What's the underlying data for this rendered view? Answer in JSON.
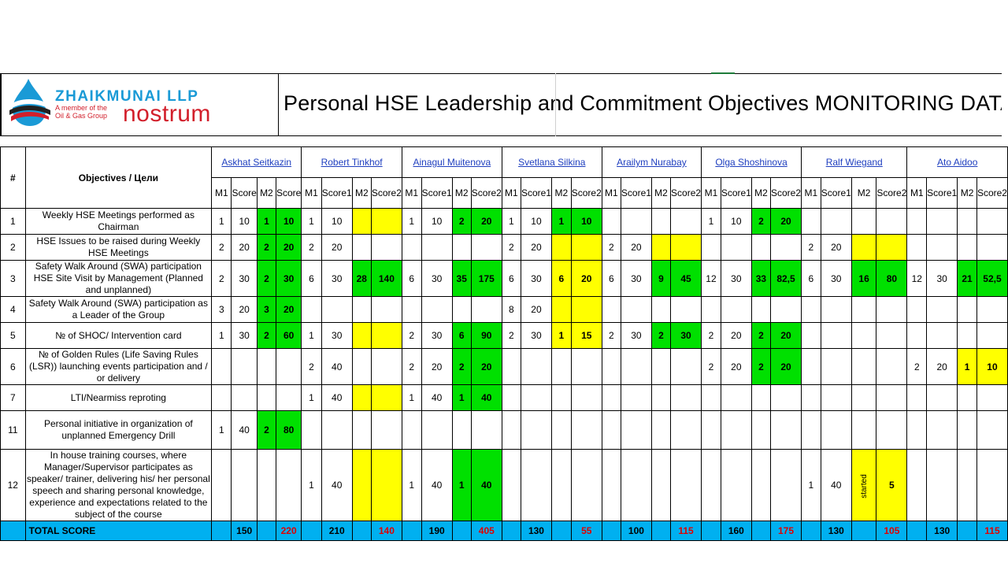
{
  "logo": {
    "company": "ZHAIKMUNAI LLP",
    "tagline_1": "A member of the",
    "tagline_2": "Oil & Gas Group",
    "brand": "nostrum"
  },
  "title": "Personal HSE Leadership and Commitment Objectives  MONITORING DATA",
  "header": {
    "hash": "#",
    "objectives": "Objectives / Цели"
  },
  "persons": [
    {
      "name": "Askhat Seitkazin",
      "cols": [
        "M1",
        "Score",
        "M2",
        "Score"
      ],
      "total1": "150",
      "total2": "220"
    },
    {
      "name": "Robert Tinkhof",
      "cols": [
        "M1",
        "Score1",
        "M2",
        "Score2"
      ],
      "total1": "210",
      "total2": "140"
    },
    {
      "name": "Ainagul Muitenova",
      "cols": [
        "M1",
        "Score1",
        "M2",
        "Score2"
      ],
      "total1": "190",
      "total2": "405"
    },
    {
      "name": "Svetlana Silkina",
      "cols": [
        "M1",
        "Score1",
        "M2",
        "Score2"
      ],
      "total1": "130",
      "total2": "55"
    },
    {
      "name": "Arailym Nurabay",
      "cols": [
        "M1",
        "Score1",
        "M2",
        "Score2"
      ],
      "total1": "100",
      "total2": "115"
    },
    {
      "name": "Olga Shoshinova",
      "cols": [
        "M1",
        "Score1",
        "M2",
        "Score2"
      ],
      "total1": "160",
      "total2": "175"
    },
    {
      "name": "Ralf Wiegand",
      "cols": [
        "M1",
        "Score1",
        "M2",
        "Score2"
      ],
      "total1": "130",
      "total2": "105"
    },
    {
      "name": "Ato Aidoo",
      "cols": [
        "M1",
        "Score1",
        "M2",
        "Score2"
      ],
      "total1": "130",
      "total2": "115"
    }
  ],
  "rows": [
    {
      "num": "1",
      "obj": "Weekly HSE Meetings performed as Chairman",
      "h": 33,
      "cells": [
        [
          "1",
          "w"
        ],
        [
          "10",
          "w"
        ],
        [
          "1",
          "g"
        ],
        [
          "10",
          "g"
        ],
        [
          "1",
          "w"
        ],
        [
          "10",
          "w"
        ],
        [
          "",
          "y"
        ],
        [
          "",
          "y"
        ],
        [
          "1",
          "w"
        ],
        [
          "10",
          "w"
        ],
        [
          "2",
          "g"
        ],
        [
          "20",
          "g"
        ],
        [
          "1",
          "w"
        ],
        [
          "10",
          "w"
        ],
        [
          "1",
          "g"
        ],
        [
          "10",
          "g"
        ],
        [
          "",
          "w"
        ],
        [
          "",
          "w"
        ],
        [
          "",
          "w"
        ],
        [
          "",
          "w"
        ],
        [
          "1",
          "w"
        ],
        [
          "10",
          "w"
        ],
        [
          "2",
          "g"
        ],
        [
          "20",
          "g"
        ],
        [
          "",
          "w"
        ],
        [
          "",
          "w"
        ],
        [
          "",
          "w"
        ],
        [
          "",
          "w"
        ],
        [
          "",
          "w"
        ],
        [
          "",
          "w"
        ],
        [
          "",
          "w"
        ],
        [
          "",
          "w"
        ]
      ]
    },
    {
      "num": "2",
      "obj": "HSE Issues to be raised during Weekly HSE Meetings",
      "h": 33,
      "cells": [
        [
          "2",
          "w"
        ],
        [
          "20",
          "w"
        ],
        [
          "2",
          "g"
        ],
        [
          "20",
          "g"
        ],
        [
          "2",
          "w"
        ],
        [
          "20",
          "w"
        ],
        [
          "",
          "w"
        ],
        [
          "",
          "w"
        ],
        [
          "",
          "w"
        ],
        [
          "",
          "w"
        ],
        [
          "",
          "w"
        ],
        [
          "",
          "w"
        ],
        [
          "2",
          "w"
        ],
        [
          "20",
          "w"
        ],
        [
          "",
          "y"
        ],
        [
          "",
          "y"
        ],
        [
          "2",
          "w"
        ],
        [
          "20",
          "w"
        ],
        [
          "",
          "y"
        ],
        [
          "",
          "y"
        ],
        [
          "",
          "w"
        ],
        [
          "",
          "w"
        ],
        [
          "",
          "w"
        ],
        [
          "",
          "w"
        ],
        [
          "2",
          "w"
        ],
        [
          "20",
          "w"
        ],
        [
          "",
          "y"
        ],
        [
          "",
          "y"
        ],
        [
          "",
          "w"
        ],
        [
          "",
          "w"
        ],
        [
          "",
          "w"
        ],
        [
          "",
          "w"
        ]
      ]
    },
    {
      "num": "3",
      "obj": "Safety Walk Around (SWA) participation HSE Site Visit by Management (Planned and unplanned)",
      "h": 33,
      "cells": [
        [
          "2",
          "w"
        ],
        [
          "30",
          "w"
        ],
        [
          "2",
          "g"
        ],
        [
          "30",
          "g"
        ],
        [
          "6",
          "w"
        ],
        [
          "30",
          "w"
        ],
        [
          "28",
          "g"
        ],
        [
          "140",
          "g"
        ],
        [
          "6",
          "w"
        ],
        [
          "30",
          "w"
        ],
        [
          "35",
          "g"
        ],
        [
          "175",
          "g"
        ],
        [
          "6",
          "w"
        ],
        [
          "30",
          "w"
        ],
        [
          "6",
          "y"
        ],
        [
          "20",
          "y"
        ],
        [
          "6",
          "w"
        ],
        [
          "30",
          "w"
        ],
        [
          "9",
          "g"
        ],
        [
          "45",
          "g"
        ],
        [
          "12",
          "w"
        ],
        [
          "30",
          "w"
        ],
        [
          "33",
          "g"
        ],
        [
          "82,5",
          "g"
        ],
        [
          "6",
          "w"
        ],
        [
          "30",
          "w"
        ],
        [
          "16",
          "g"
        ],
        [
          "80",
          "g"
        ],
        [
          "12",
          "w"
        ],
        [
          "30",
          "w"
        ],
        [
          "21",
          "g"
        ],
        [
          "52,5",
          "g"
        ]
      ]
    },
    {
      "num": "4",
      "obj": "Safety Walk Around (SWA) participation as a Leader of the Group",
      "h": 33,
      "cells": [
        [
          "3",
          "w"
        ],
        [
          "20",
          "w"
        ],
        [
          "3",
          "g"
        ],
        [
          "20",
          "g"
        ],
        [
          "",
          "w"
        ],
        [
          "",
          "w"
        ],
        [
          "",
          "w"
        ],
        [
          "",
          "w"
        ],
        [
          "",
          "w"
        ],
        [
          "",
          "w"
        ],
        [
          "",
          "w"
        ],
        [
          "",
          "w"
        ],
        [
          "8",
          "w"
        ],
        [
          "20",
          "w"
        ],
        [
          "",
          "y"
        ],
        [
          "",
          "y"
        ],
        [
          "",
          "w"
        ],
        [
          "",
          "w"
        ],
        [
          "",
          "w"
        ],
        [
          "",
          "w"
        ],
        [
          "",
          "w"
        ],
        [
          "",
          "w"
        ],
        [
          "",
          "w"
        ],
        [
          "",
          "w"
        ],
        [
          "",
          "w"
        ],
        [
          "",
          "w"
        ],
        [
          "",
          "w"
        ],
        [
          "",
          "w"
        ],
        [
          "",
          "w"
        ],
        [
          "",
          "w"
        ],
        [
          "",
          "w"
        ],
        [
          "",
          "w"
        ]
      ]
    },
    {
      "num": "5",
      "obj": "№ of SHOC/ Intervention card",
      "h": 33,
      "cells": [
        [
          "1",
          "w"
        ],
        [
          "30",
          "w"
        ],
        [
          "2",
          "g"
        ],
        [
          "60",
          "g"
        ],
        [
          "1",
          "w"
        ],
        [
          "30",
          "w"
        ],
        [
          "",
          "y"
        ],
        [
          "",
          "y"
        ],
        [
          "2",
          "w"
        ],
        [
          "30",
          "w"
        ],
        [
          "6",
          "g"
        ],
        [
          "90",
          "g"
        ],
        [
          "2",
          "w"
        ],
        [
          "30",
          "w"
        ],
        [
          "1",
          "y"
        ],
        [
          "15",
          "y"
        ],
        [
          "2",
          "w"
        ],
        [
          "30",
          "w"
        ],
        [
          "2",
          "g"
        ],
        [
          "30",
          "g"
        ],
        [
          "2",
          "w"
        ],
        [
          "20",
          "w"
        ],
        [
          "2",
          "g"
        ],
        [
          "20",
          "g"
        ],
        [
          "",
          "w"
        ],
        [
          "",
          "w"
        ],
        [
          "",
          "w"
        ],
        [
          "",
          "w"
        ],
        [
          "",
          "w"
        ],
        [
          "",
          "w"
        ],
        [
          "",
          "w"
        ],
        [
          "",
          "w"
        ]
      ]
    },
    {
      "num": "6",
      "obj": "№ of Golden Rules (Life Saving Rules (LSR)) launching events participation and / or delivery",
      "h": 33,
      "cells": [
        [
          "",
          "w"
        ],
        [
          "",
          "w"
        ],
        [
          "",
          "w"
        ],
        [
          "",
          "w"
        ],
        [
          "2",
          "w"
        ],
        [
          "40",
          "w"
        ],
        [
          "",
          "w"
        ],
        [
          "",
          "w"
        ],
        [
          "2",
          "w"
        ],
        [
          "20",
          "w"
        ],
        [
          "2",
          "g"
        ],
        [
          "20",
          "g"
        ],
        [
          "",
          "w"
        ],
        [
          "",
          "w"
        ],
        [
          "",
          "w"
        ],
        [
          "",
          "w"
        ],
        [
          "",
          "w"
        ],
        [
          "",
          "w"
        ],
        [
          "",
          "w"
        ],
        [
          "",
          "w"
        ],
        [
          "2",
          "w"
        ],
        [
          "20",
          "w"
        ],
        [
          "2",
          "g"
        ],
        [
          "20",
          "g"
        ],
        [
          "",
          "w"
        ],
        [
          "",
          "w"
        ],
        [
          "",
          "w"
        ],
        [
          "",
          "w"
        ],
        [
          "2",
          "w"
        ],
        [
          "20",
          "w"
        ],
        [
          "1",
          "y"
        ],
        [
          "10",
          "y"
        ]
      ]
    },
    {
      "num": "7",
      "obj": "LTI/Nearmiss reproting",
      "h": 33,
      "cells": [
        [
          "",
          "w"
        ],
        [
          "",
          "w"
        ],
        [
          "",
          "w"
        ],
        [
          "",
          "w"
        ],
        [
          "1",
          "w"
        ],
        [
          "40",
          "w"
        ],
        [
          "",
          "y"
        ],
        [
          "",
          "y"
        ],
        [
          "1",
          "w"
        ],
        [
          "40",
          "w"
        ],
        [
          "1",
          "g"
        ],
        [
          "40",
          "g"
        ],
        [
          "",
          "w"
        ],
        [
          "",
          "w"
        ],
        [
          "",
          "w"
        ],
        [
          "",
          "w"
        ],
        [
          "",
          "w"
        ],
        [
          "",
          "w"
        ],
        [
          "",
          "w"
        ],
        [
          "",
          "w"
        ],
        [
          "",
          "w"
        ],
        [
          "",
          "w"
        ],
        [
          "",
          "w"
        ],
        [
          "",
          "w"
        ],
        [
          "",
          "w"
        ],
        [
          "",
          "w"
        ],
        [
          "",
          "w"
        ],
        [
          "",
          "w"
        ],
        [
          "",
          "w"
        ],
        [
          "",
          "w"
        ],
        [
          "",
          "w"
        ],
        [
          "",
          "w"
        ]
      ]
    },
    {
      "num": "11",
      "obj": "Personal initiative in organization of unplanned Emergency Drill",
      "h": 49,
      "cells": [
        [
          "1",
          "w"
        ],
        [
          "40",
          "w"
        ],
        [
          "2",
          "g"
        ],
        [
          "80",
          "g"
        ],
        [
          "",
          "w"
        ],
        [
          "",
          "w"
        ],
        [
          "",
          "w"
        ],
        [
          "",
          "w"
        ],
        [
          "",
          "w"
        ],
        [
          "",
          "w"
        ],
        [
          "",
          "w"
        ],
        [
          "",
          "w"
        ],
        [
          "",
          "w"
        ],
        [
          "",
          "w"
        ],
        [
          "",
          "w"
        ],
        [
          "",
          "w"
        ],
        [
          "",
          "w"
        ],
        [
          "",
          "w"
        ],
        [
          "",
          "w"
        ],
        [
          "",
          "w"
        ],
        [
          "",
          "w"
        ],
        [
          "",
          "w"
        ],
        [
          "",
          "w"
        ],
        [
          "",
          "w"
        ],
        [
          "",
          "w"
        ],
        [
          "",
          "w"
        ],
        [
          "",
          "w"
        ],
        [
          "",
          "w"
        ],
        [
          "",
          "w"
        ],
        [
          "",
          "w"
        ],
        [
          "",
          "w"
        ],
        [
          "",
          "w"
        ]
      ]
    },
    {
      "num": "12",
      "obj": "In house training courses, where Manager/Supervisor participates as speaker/ trainer, delivering his/ her personal speech and sharing personal knowledge, experience and expectations related to the subject of the course",
      "h": 49,
      "cells": [
        [
          "",
          "w"
        ],
        [
          "",
          "w"
        ],
        [
          "",
          "w"
        ],
        [
          "",
          "w"
        ],
        [
          "1",
          "w"
        ],
        [
          "40",
          "w"
        ],
        [
          "",
          "y"
        ],
        [
          "",
          "y"
        ],
        [
          "1",
          "w"
        ],
        [
          "40",
          "w"
        ],
        [
          "1",
          "g"
        ],
        [
          "40",
          "g"
        ],
        [
          "",
          "w"
        ],
        [
          "",
          "w"
        ],
        [
          "",
          "w"
        ],
        [
          "",
          "w"
        ],
        [
          "",
          "w"
        ],
        [
          "",
          "w"
        ],
        [
          "",
          "w"
        ],
        [
          "",
          "w"
        ],
        [
          "",
          "w"
        ],
        [
          "",
          "w"
        ],
        [
          "",
          "w"
        ],
        [
          "",
          "w"
        ],
        [
          "1",
          "w"
        ],
        [
          "40",
          "w"
        ],
        [
          "started",
          "yv"
        ],
        [
          "5",
          "y"
        ],
        [
          "",
          "w"
        ],
        [
          "",
          "w"
        ],
        [
          "",
          "w"
        ],
        [
          "",
          "w"
        ]
      ]
    }
  ],
  "total": {
    "label": "TOTAL SCORE"
  }
}
